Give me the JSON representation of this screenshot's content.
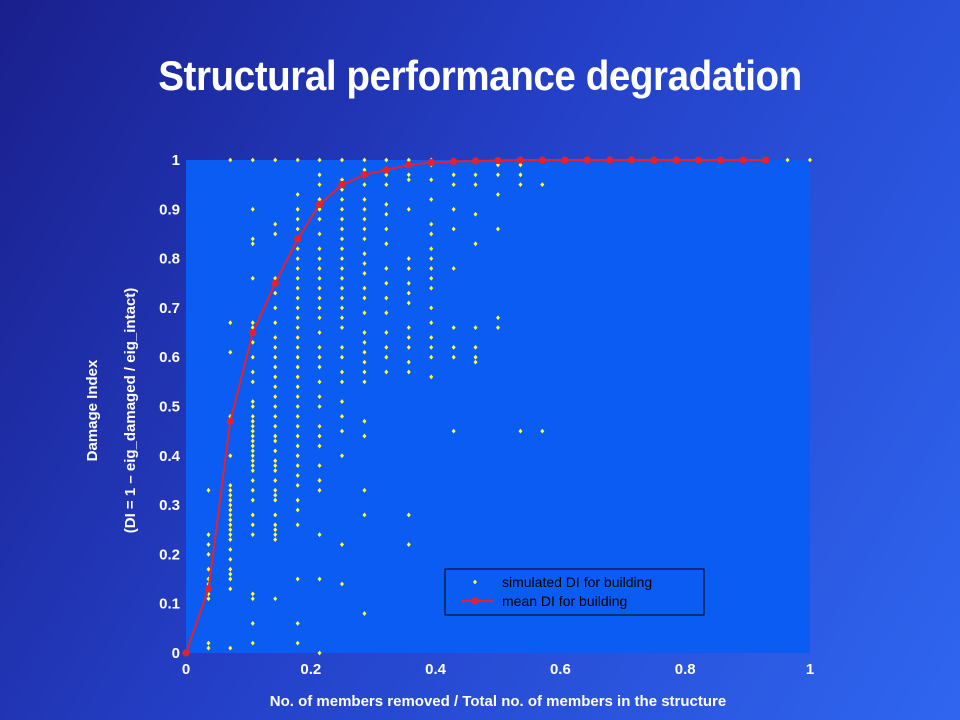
{
  "slide": {
    "title": "Structural performance degradation"
  },
  "colors": {
    "plot_bg": "#0b5cf2",
    "scatter": "#ffff33",
    "mean_line": "#e8202a",
    "text": "#ffffff"
  },
  "chart_data": {
    "type": "scatter",
    "title": "",
    "xlabel": "No. of members removed / Total no. of members in the structure",
    "ylabel_line1": "Damage Index",
    "ylabel_line2": "(DI = 1 – eig_damaged / eig_intact)",
    "xlim": [
      0,
      1
    ],
    "ylim": [
      0,
      1
    ],
    "xticks": [
      0,
      0.2,
      0.4,
      0.6,
      0.8,
      1
    ],
    "xtick_labels": [
      "0",
      "0.2",
      "0.4",
      "0.6",
      "0.8",
      "1"
    ],
    "yticks": [
      0,
      0.1,
      0.2,
      0.3,
      0.4,
      0.5,
      0.6,
      0.7,
      0.8,
      0.9,
      1
    ],
    "ytick_labels": [
      "0",
      "0.1",
      "0.2",
      "0.3",
      "0.4",
      "0.5",
      "0.6",
      "0.7",
      "0.8",
      "0.9",
      "1"
    ],
    "grid": false,
    "legend_position": "bottom-right",
    "series": [
      {
        "name": "simulated DI for building",
        "style": "points",
        "columns": [
          {
            "x": 0.0,
            "y": [
              0
            ]
          },
          {
            "x": 0.036,
            "y": [
              0.01,
              0.02,
              0.11,
              0.12,
              0.13,
              0.14,
              0.15,
              0.17,
              0.2,
              0.22,
              0.24,
              0.33
            ]
          },
          {
            "x": 0.071,
            "y": [
              0.01,
              0.13,
              0.15,
              0.16,
              0.17,
              0.19,
              0.21,
              0.23,
              0.24,
              0.25,
              0.26,
              0.27,
              0.28,
              0.29,
              0.3,
              0.31,
              0.32,
              0.33,
              0.34,
              0.4,
              0.48,
              0.61,
              0.67,
              1.0
            ]
          },
          {
            "x": 0.107,
            "y": [
              0.02,
              0.06,
              0.11,
              0.12,
              0.24,
              0.26,
              0.28,
              0.31,
              0.33,
              0.35,
              0.37,
              0.38,
              0.39,
              0.4,
              0.41,
              0.42,
              0.43,
              0.44,
              0.45,
              0.46,
              0.47,
              0.48,
              0.5,
              0.51,
              0.55,
              0.57,
              0.6,
              0.63,
              0.66,
              0.67,
              0.76,
              0.83,
              0.84,
              0.9,
              1.0
            ]
          },
          {
            "x": 0.143,
            "y": [
              0.11,
              0.23,
              0.24,
              0.25,
              0.26,
              0.28,
              0.31,
              0.32,
              0.33,
              0.35,
              0.37,
              0.38,
              0.39,
              0.41,
              0.43,
              0.44,
              0.46,
              0.48,
              0.5,
              0.52,
              0.54,
              0.56,
              0.58,
              0.6,
              0.62,
              0.64,
              0.67,
              0.7,
              0.73,
              0.76,
              0.85,
              0.87,
              1.0
            ]
          },
          {
            "x": 0.179,
            "y": [
              0.02,
              0.06,
              0.15,
              0.26,
              0.29,
              0.31,
              0.34,
              0.36,
              0.38,
              0.4,
              0.42,
              0.44,
              0.46,
              0.48,
              0.5,
              0.52,
              0.54,
              0.56,
              0.58,
              0.6,
              0.62,
              0.64,
              0.66,
              0.68,
              0.7,
              0.72,
              0.74,
              0.76,
              0.78,
              0.8,
              0.82,
              0.84,
              0.86,
              0.88,
              0.9,
              0.93,
              1.0
            ]
          },
          {
            "x": 0.214,
            "y": [
              0.0,
              0.15,
              0.24,
              0.33,
              0.35,
              0.38,
              0.42,
              0.44,
              0.46,
              0.5,
              0.52,
              0.55,
              0.58,
              0.6,
              0.62,
              0.65,
              0.68,
              0.7,
              0.72,
              0.74,
              0.76,
              0.78,
              0.8,
              0.82,
              0.85,
              0.88,
              0.9,
              0.92,
              0.95,
              0.97,
              1.0
            ]
          },
          {
            "x": 0.25,
            "y": [
              0.14,
              0.22,
              0.4,
              0.45,
              0.48,
              0.51,
              0.55,
              0.57,
              0.6,
              0.62,
              0.66,
              0.68,
              0.7,
              0.72,
              0.74,
              0.76,
              0.78,
              0.8,
              0.82,
              0.84,
              0.86,
              0.88,
              0.9,
              0.92,
              0.94,
              0.96,
              1.0
            ]
          },
          {
            "x": 0.286,
            "y": [
              0.08,
              0.28,
              0.33,
              0.44,
              0.47,
              0.55,
              0.57,
              0.59,
              0.61,
              0.63,
              0.65,
              0.69,
              0.72,
              0.74,
              0.77,
              0.79,
              0.81,
              0.84,
              0.86,
              0.88,
              0.9,
              0.92,
              0.95,
              0.98,
              1.0
            ]
          },
          {
            "x": 0.321,
            "y": [
              0.57,
              0.6,
              0.62,
              0.65,
              0.69,
              0.72,
              0.75,
              0.78,
              0.83,
              0.86,
              0.89,
              0.91,
              0.95,
              0.97,
              1.0
            ]
          },
          {
            "x": 0.357,
            "y": [
              0.22,
              0.28,
              0.57,
              0.59,
              0.62,
              0.64,
              0.66,
              0.71,
              0.73,
              0.75,
              0.78,
              0.8,
              0.9,
              0.96,
              0.97,
              1.0
            ]
          },
          {
            "x": 0.393,
            "y": [
              0.56,
              0.6,
              0.62,
              0.64,
              0.67,
              0.7,
              0.74,
              0.76,
              0.78,
              0.8,
              0.82,
              0.85,
              0.87,
              0.92,
              0.96,
              0.99,
              1.0
            ]
          },
          {
            "x": 0.429,
            "y": [
              0.45,
              0.6,
              0.62,
              0.66,
              0.78,
              0.86,
              0.9,
              0.95,
              0.97,
              1.0
            ]
          },
          {
            "x": 0.464,
            "y": [
              0.59,
              0.6,
              0.62,
              0.66,
              0.83,
              0.89,
              0.95,
              0.97,
              1.0
            ]
          },
          {
            "x": 0.5,
            "y": [
              0.66,
              0.68,
              0.86,
              0.93,
              0.97,
              0.99,
              1.0
            ]
          },
          {
            "x": 0.536,
            "y": [
              0.45,
              0.95,
              0.97,
              0.99,
              1.0
            ]
          },
          {
            "x": 0.571,
            "y": [
              0.45,
              0.95,
              1.0
            ]
          },
          {
            "x": 0.607,
            "y": [
              1.0
            ]
          },
          {
            "x": 0.643,
            "y": [
              1.0
            ]
          },
          {
            "x": 0.679,
            "y": [
              1.0
            ]
          },
          {
            "x": 0.714,
            "y": [
              1.0
            ]
          },
          {
            "x": 0.75,
            "y": [
              1.0
            ]
          },
          {
            "x": 0.786,
            "y": [
              1.0
            ]
          },
          {
            "x": 0.821,
            "y": [
              1.0
            ]
          },
          {
            "x": 0.857,
            "y": [
              1.0
            ]
          },
          {
            "x": 0.893,
            "y": [
              1.0
            ]
          },
          {
            "x": 0.929,
            "y": [
              1.0
            ]
          },
          {
            "x": 0.964,
            "y": [
              1.0
            ]
          },
          {
            "x": 1.0,
            "y": [
              1.0
            ]
          }
        ]
      },
      {
        "name": "mean DI for building",
        "style": "line-markers",
        "x": [
          0.0,
          0.036,
          0.071,
          0.107,
          0.143,
          0.179,
          0.214,
          0.25,
          0.286,
          0.321,
          0.357,
          0.393,
          0.429,
          0.464,
          0.5,
          0.536,
          0.571,
          0.607,
          0.643,
          0.679,
          0.714,
          0.75,
          0.786,
          0.821,
          0.857,
          0.893,
          0.929
        ],
        "y": [
          0.0,
          0.13,
          0.47,
          0.65,
          0.75,
          0.84,
          0.91,
          0.95,
          0.97,
          0.98,
          0.99,
          0.995,
          0.997,
          0.998,
          0.999,
          1.0,
          1.0,
          1.0,
          1.0,
          1.0,
          1.0,
          1.0,
          1.0,
          1.0,
          1.0,
          1.0,
          1.0
        ]
      }
    ]
  }
}
